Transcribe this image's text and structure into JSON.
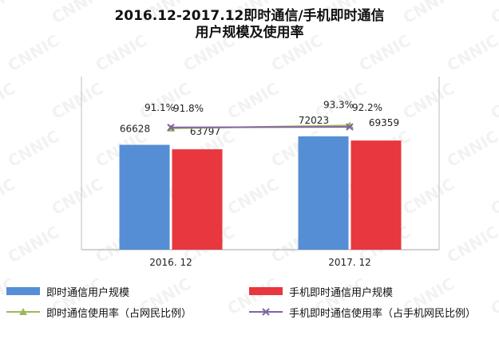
{
  "watermark": "CNNIC",
  "chart_data": {
    "type": "bar",
    "title_line1": "2016.12-2017.12即时通信/手机即时通信",
    "title_line2": "用户规模及使用率",
    "categories": [
      "2016. 12",
      "2017. 12"
    ],
    "bar_series": [
      {
        "name": "即时通信用户规模",
        "values": [
          66628,
          72023
        ],
        "color": "#558ed5"
      },
      {
        "name": "手机即时通信用户规模",
        "values": [
          63797,
          69359
        ],
        "color": "#e8373e"
      }
    ],
    "line_series": [
      {
        "name": "即时通信使用率（占网民比例）",
        "values": [
          91.1,
          93.3
        ],
        "labels": [
          "91.1%",
          "93.3%"
        ],
        "color": "#9bbb59",
        "marker": "triangle"
      },
      {
        "name": "手机即时通信使用率（占手机网民比例）",
        "values": [
          91.8,
          92.2
        ],
        "labels": [
          "91.8%",
          "92.2%"
        ],
        "color": "#8064a2",
        "marker": "x"
      }
    ],
    "bar_ylim": [
      0,
      110000
    ],
    "line_ylim": [
      0,
      130
    ],
    "legend_position": "bottom",
    "grid": false
  }
}
